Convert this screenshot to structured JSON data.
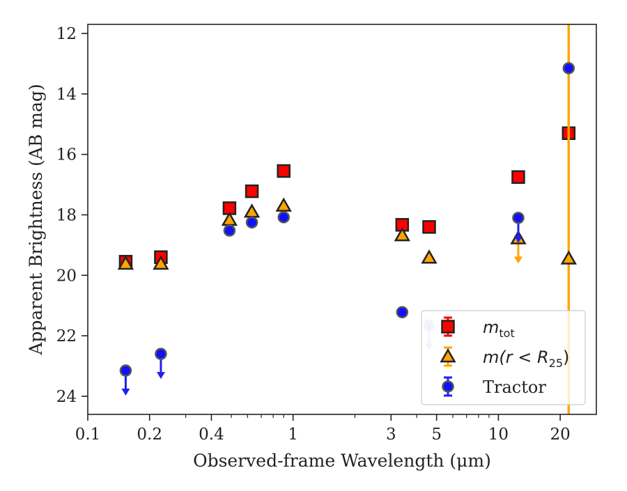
{
  "chart_data": {
    "type": "scatter",
    "title": "",
    "xlabel": "Observed-frame Wavelength (μm)",
    "ylabel": "Apparent Brightness (AB mag)",
    "xscale": "log",
    "xlim": [
      0.1,
      30
    ],
    "ylim": [
      24.6,
      11.7
    ],
    "y_inverted": true,
    "grid": false,
    "legend_position": "lower-right",
    "x_ticks": [
      {
        "value": 0.1,
        "label": "0.1"
      },
      {
        "value": 0.2,
        "label": "0.2"
      },
      {
        "value": 0.4,
        "label": "0.4"
      },
      {
        "value": 1,
        "label": "1"
      },
      {
        "value": 3,
        "label": "3"
      },
      {
        "value": 5,
        "label": "5"
      },
      {
        "value": 10,
        "label": "10"
      },
      {
        "value": 20,
        "label": "20"
      }
    ],
    "y_ticks": [
      {
        "value": 12,
        "label": "12"
      },
      {
        "value": 14,
        "label": "14"
      },
      {
        "value": 16,
        "label": "16"
      },
      {
        "value": 18,
        "label": "18"
      },
      {
        "value": 20,
        "label": "20"
      },
      {
        "value": 22,
        "label": "22"
      },
      {
        "value": 24,
        "label": "24"
      }
    ],
    "series": [
      {
        "name": "m_tot",
        "legend_label": "m_tot",
        "marker": "square",
        "color": "#ff0000",
        "errorbar_color": "#ff0000",
        "points": [
          {
            "x": 0.153,
            "y": 19.55
          },
          {
            "x": 0.227,
            "y": 19.4
          },
          {
            "x": 0.49,
            "y": 17.78
          },
          {
            "x": 0.63,
            "y": 17.22
          },
          {
            "x": 0.9,
            "y": 16.55
          },
          {
            "x": 3.4,
            "y": 18.33
          },
          {
            "x": 4.6,
            "y": 18.4
          },
          {
            "x": 12.5,
            "y": 16.75
          },
          {
            "x": 22.0,
            "y": 15.3
          }
        ]
      },
      {
        "name": "m(r<R25)",
        "legend_label": "m(r < R25)",
        "marker": "triangle",
        "color": "#ffa500",
        "errorbar_color": "#ffa500",
        "points": [
          {
            "x": 0.153,
            "y": 19.62
          },
          {
            "x": 0.227,
            "y": 19.62
          },
          {
            "x": 0.49,
            "y": 18.17
          },
          {
            "x": 0.63,
            "y": 17.9
          },
          {
            "x": 0.9,
            "y": 17.7
          },
          {
            "x": 3.4,
            "y": 18.68
          },
          {
            "x": 4.6,
            "y": 19.42
          },
          {
            "x": 12.5,
            "y": 18.78,
            "upper_limit": true
          },
          {
            "x": 22.0,
            "y": 19.45,
            "vertical_error_line": true
          }
        ]
      },
      {
        "name": "Tractor",
        "legend_label": "Tractor",
        "marker": "circle",
        "color": "#1010ff",
        "errorbar_color": "#2020ee",
        "points": [
          {
            "x": 0.153,
            "y": 23.15,
            "upper_limit": true
          },
          {
            "x": 0.227,
            "y": 22.6,
            "upper_limit": true
          },
          {
            "x": 0.49,
            "y": 18.52
          },
          {
            "x": 0.63,
            "y": 18.25
          },
          {
            "x": 0.9,
            "y": 18.08
          },
          {
            "x": 3.4,
            "y": 21.22
          },
          {
            "x": 4.6,
            "y": 21.65,
            "upper_limit": true,
            "faded": true
          },
          {
            "x": 12.5,
            "y": 18.1,
            "upper_limit": true
          },
          {
            "x": 22.0,
            "y": 13.15
          }
        ]
      }
    ]
  },
  "legend": {
    "entries": [
      {
        "series": "m_tot",
        "base": "m",
        "sub": "tot",
        "suffix": ""
      },
      {
        "series": "m(r<R25)",
        "base": "m(r < R",
        "sub": "25",
        "suffix": ")"
      },
      {
        "series": "Tractor",
        "base": "Tractor",
        "sub": "",
        "suffix": ""
      }
    ]
  }
}
